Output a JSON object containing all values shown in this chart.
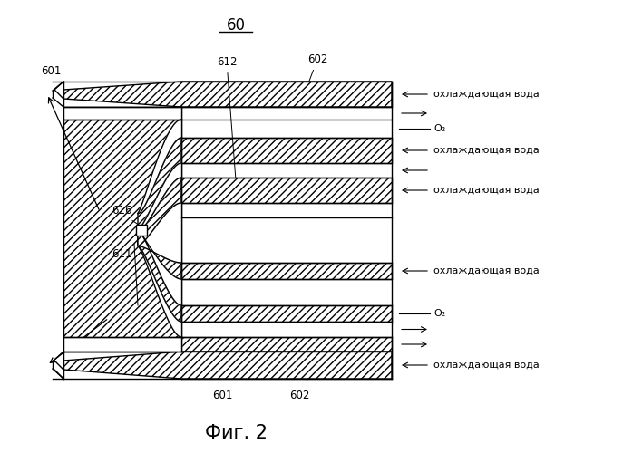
{
  "title": "60",
  "caption": "Фиг. 2",
  "bg_color": "#ffffff",
  "line_color": "#000000",
  "water_label": "охлаждающая вода",
  "o2_label": "O₂"
}
